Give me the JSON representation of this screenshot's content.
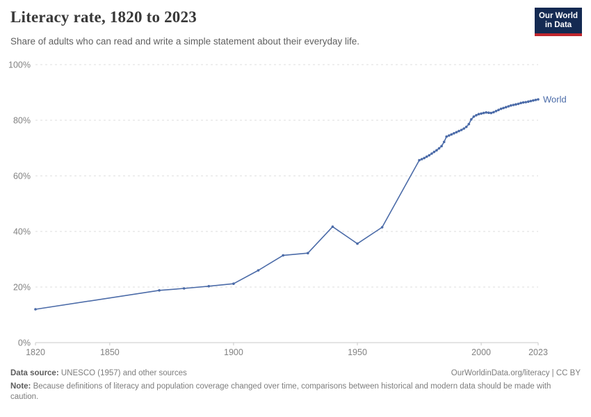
{
  "header": {
    "title": "Literacy rate, 1820 to 2023",
    "subtitle": "Share of adults who can read and write a simple statement about their everyday life.",
    "logo": {
      "line1": "Our World",
      "line2": "in Data",
      "bg_color": "#142a52",
      "accent_color": "#c0262d"
    }
  },
  "chart_data": {
    "type": "line",
    "title": "Literacy rate, 1820 to 2023",
    "xlabel": "",
    "ylabel": "",
    "xlim": [
      1820,
      2023
    ],
    "ylim": [
      0,
      100
    ],
    "x_ticks": [
      1820,
      1850,
      1900,
      1950,
      2000,
      2023
    ],
    "y_ticks": [
      0,
      20,
      40,
      60,
      80,
      100
    ],
    "y_tick_suffix": "%",
    "grid": "horizontal-dashed",
    "legend_position": "end-of-line-label",
    "series": [
      {
        "name": "World",
        "color": "#4b6ba8",
        "points": [
          [
            1820,
            12.0
          ],
          [
            1870,
            18.8
          ],
          [
            1880,
            19.5
          ],
          [
            1890,
            20.3
          ],
          [
            1900,
            21.2
          ],
          [
            1910,
            26.0
          ],
          [
            1920,
            31.4
          ],
          [
            1930,
            32.2
          ],
          [
            1940,
            41.7
          ],
          [
            1950,
            35.6
          ],
          [
            1960,
            41.5
          ],
          [
            1975,
            65.6
          ],
          [
            1976,
            66.0
          ],
          [
            1977,
            66.4
          ],
          [
            1978,
            66.9
          ],
          [
            1979,
            67.4
          ],
          [
            1980,
            68.0
          ],
          [
            1981,
            68.6
          ],
          [
            1982,
            69.2
          ],
          [
            1983,
            69.9
          ],
          [
            1984,
            70.7
          ],
          [
            1985,
            72.2
          ],
          [
            1986,
            74.1
          ],
          [
            1987,
            74.5
          ],
          [
            1988,
            74.9
          ],
          [
            1989,
            75.3
          ],
          [
            1990,
            75.7
          ],
          [
            1991,
            76.1
          ],
          [
            1992,
            76.5
          ],
          [
            1993,
            77.0
          ],
          [
            1994,
            77.6
          ],
          [
            1995,
            78.6
          ],
          [
            1996,
            80.3
          ],
          [
            1997,
            81.3
          ],
          [
            1998,
            81.8
          ],
          [
            1999,
            82.2
          ],
          [
            2000,
            82.4
          ],
          [
            2001,
            82.6
          ],
          [
            2002,
            82.8
          ],
          [
            2003,
            82.7
          ],
          [
            2004,
            82.6
          ],
          [
            2005,
            82.9
          ],
          [
            2006,
            83.3
          ],
          [
            2007,
            83.7
          ],
          [
            2008,
            84.1
          ],
          [
            2009,
            84.4
          ],
          [
            2010,
            84.7
          ],
          [
            2011,
            85.0
          ],
          [
            2012,
            85.3
          ],
          [
            2013,
            85.5
          ],
          [
            2014,
            85.7
          ],
          [
            2015,
            85.9
          ],
          [
            2016,
            86.2
          ],
          [
            2017,
            86.4
          ],
          [
            2018,
            86.5
          ],
          [
            2019,
            86.7
          ],
          [
            2020,
            86.9
          ],
          [
            2021,
            87.1
          ],
          [
            2022,
            87.3
          ],
          [
            2023,
            87.5
          ]
        ]
      }
    ]
  },
  "footer": {
    "source_label": "Data source:",
    "source_text": "UNESCO (1957) and other sources",
    "link": "OurWorldinData.org/literacy | CC BY",
    "note_label": "Note:",
    "note_text": "Because definitions of literacy and population coverage changed over time, comparisons between historical and modern data should be made with caution."
  }
}
